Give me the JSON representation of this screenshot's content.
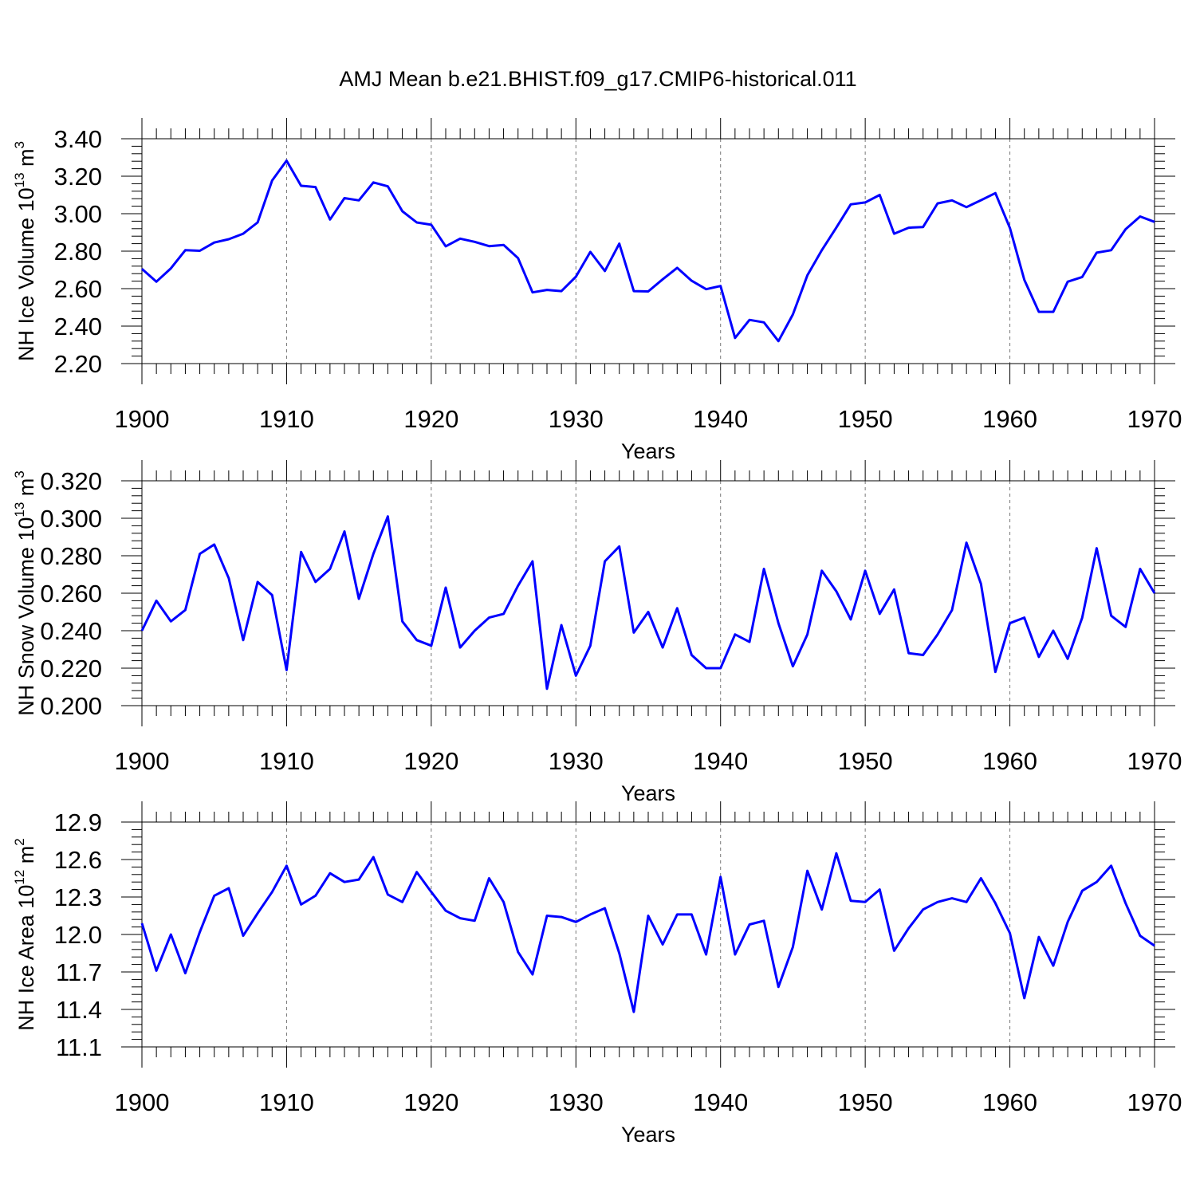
{
  "title": "AMJ Mean b.e21.BHIST.f09_g17.CMIP6-historical.011",
  "series_color": "#0000ff",
  "chart_data": [
    {
      "type": "line",
      "ylabel_main": "NH Ice Volume 10",
      "ylabel_exp": "13",
      "ylabel_unit": " m",
      "ylabel_unit_exp": "3",
      "xlabel": "Years",
      "xlim": [
        1900,
        1970
      ],
      "ylim": [
        2.2,
        3.4
      ],
      "yticks": [
        "2.20",
        "2.40",
        "2.60",
        "2.80",
        "3.00",
        "3.20",
        "3.40"
      ],
      "xticks": [
        "1900",
        "1910",
        "1920",
        "1930",
        "1940",
        "1950",
        "1960",
        "1970"
      ],
      "grid": "vertical-dashed",
      "x_start": 1900,
      "values": [
        2.705,
        2.637,
        2.708,
        2.805,
        2.802,
        2.846,
        2.864,
        2.893,
        2.953,
        3.177,
        3.283,
        3.149,
        3.142,
        2.969,
        3.083,
        3.071,
        3.167,
        3.146,
        3.013,
        2.953,
        2.941,
        2.826,
        2.867,
        2.85,
        2.827,
        2.833,
        2.763,
        2.58,
        2.593,
        2.587,
        2.664,
        2.796,
        2.694,
        2.84,
        2.587,
        2.585,
        2.65,
        2.711,
        2.642,
        2.597,
        2.614,
        2.337,
        2.433,
        2.42,
        2.32,
        2.462,
        2.671,
        2.805,
        2.926,
        3.05,
        3.06,
        3.1,
        2.893,
        2.925,
        2.929,
        3.055,
        3.071,
        3.035,
        3.072,
        3.11,
        2.924,
        2.647,
        2.476,
        2.476,
        2.637,
        2.662,
        2.792,
        2.805,
        2.917,
        2.985,
        2.956
      ]
    },
    {
      "type": "line",
      "ylabel_main": "NH Snow Volume 10",
      "ylabel_exp": "13",
      "ylabel_unit": " m",
      "ylabel_unit_exp": "3",
      "xlabel": "Years",
      "xlim": [
        1900,
        1970
      ],
      "ylim": [
        0.2,
        0.32
      ],
      "yticks": [
        "0.200",
        "0.220",
        "0.240",
        "0.260",
        "0.280",
        "0.300",
        "0.320"
      ],
      "xticks": [
        "1900",
        "1910",
        "1920",
        "1930",
        "1940",
        "1950",
        "1960",
        "1970"
      ],
      "grid": "vertical-dashed",
      "x_start": 1900,
      "values": [
        0.24,
        0.256,
        0.245,
        0.251,
        0.281,
        0.286,
        0.268,
        0.235,
        0.266,
        0.259,
        0.219,
        0.282,
        0.266,
        0.273,
        0.293,
        0.257,
        0.281,
        0.301,
        0.245,
        0.235,
        0.232,
        0.263,
        0.231,
        0.24,
        0.247,
        0.249,
        0.264,
        0.277,
        0.209,
        0.243,
        0.216,
        0.232,
        0.277,
        0.285,
        0.239,
        0.25,
        0.231,
        0.252,
        0.227,
        0.22,
        0.22,
        0.238,
        0.234,
        0.273,
        0.244,
        0.221,
        0.238,
        0.272,
        0.261,
        0.246,
        0.272,
        0.249,
        0.262,
        0.228,
        0.227,
        0.238,
        0.251,
        0.287,
        0.265,
        0.218,
        0.244,
        0.247,
        0.226,
        0.24,
        0.225,
        0.247,
        0.284,
        0.248,
        0.242,
        0.273,
        0.26
      ]
    },
    {
      "type": "line",
      "ylabel_main": "NH Ice Area 10",
      "ylabel_exp": "12",
      "ylabel_unit": " m",
      "ylabel_unit_exp": "2",
      "xlabel": "Years",
      "xlim": [
        1900,
        1970
      ],
      "ylim": [
        11.1,
        12.9
      ],
      "yticks": [
        "11.1",
        "11.4",
        "11.7",
        "12.0",
        "12.3",
        "12.6",
        "12.9"
      ],
      "xticks": [
        "1900",
        "1910",
        "1920",
        "1930",
        "1940",
        "1950",
        "1960",
        "1970"
      ],
      "grid": "vertical-dashed",
      "x_start": 1900,
      "values": [
        12.09,
        11.71,
        12.0,
        11.69,
        12.02,
        12.31,
        12.37,
        11.99,
        12.17,
        12.34,
        12.55,
        12.24,
        12.31,
        12.49,
        12.42,
        12.44,
        12.62,
        12.32,
        12.26,
        12.5,
        12.34,
        12.19,
        12.13,
        12.11,
        12.45,
        12.26,
        11.86,
        11.68,
        12.15,
        12.14,
        12.1,
        12.16,
        12.21,
        11.85,
        11.38,
        12.15,
        11.92,
        12.16,
        12.16,
        11.84,
        12.46,
        11.84,
        12.08,
        12.11,
        11.58,
        11.9,
        12.51,
        12.2,
        12.65,
        12.27,
        12.26,
        12.36,
        11.87,
        12.05,
        12.2,
        12.26,
        12.29,
        12.26,
        12.45,
        12.25,
        12.01,
        11.49,
        11.98,
        11.75,
        12.1,
        12.35,
        12.42,
        12.55,
        12.25,
        11.99,
        11.91
      ]
    }
  ]
}
